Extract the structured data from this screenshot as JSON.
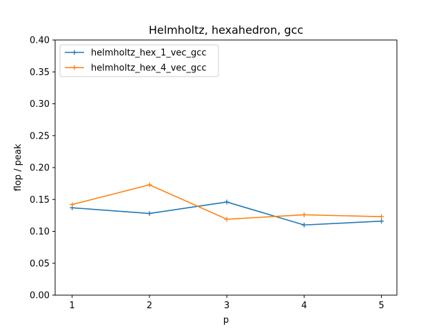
{
  "chart_data": {
    "type": "line",
    "title": "Helmholtz, hexahedron, gcc",
    "xlabel": "p",
    "ylabel": "flop / peak",
    "x": [
      1,
      2,
      3,
      4,
      5
    ],
    "xticks": [
      "1",
      "2",
      "3",
      "4",
      "5"
    ],
    "xlim": [
      0.78,
      5.2
    ],
    "ylim": [
      0.0,
      0.4
    ],
    "yticks": [
      "0.00",
      "0.05",
      "0.10",
      "0.15",
      "0.20",
      "0.25",
      "0.30",
      "0.35",
      "0.40"
    ],
    "grid": false,
    "legend_position": "upper-left",
    "marker": "plus",
    "series": [
      {
        "name": "helmholtz_hex_1_vec_gcc",
        "color": "#1f77b4",
        "values": [
          0.137,
          0.128,
          0.146,
          0.11,
          0.116
        ]
      },
      {
        "name": "helmholtz_hex_4_vec_gcc",
        "color": "#ff7f0e",
        "values": [
          0.142,
          0.173,
          0.119,
          0.126,
          0.123
        ]
      }
    ]
  }
}
